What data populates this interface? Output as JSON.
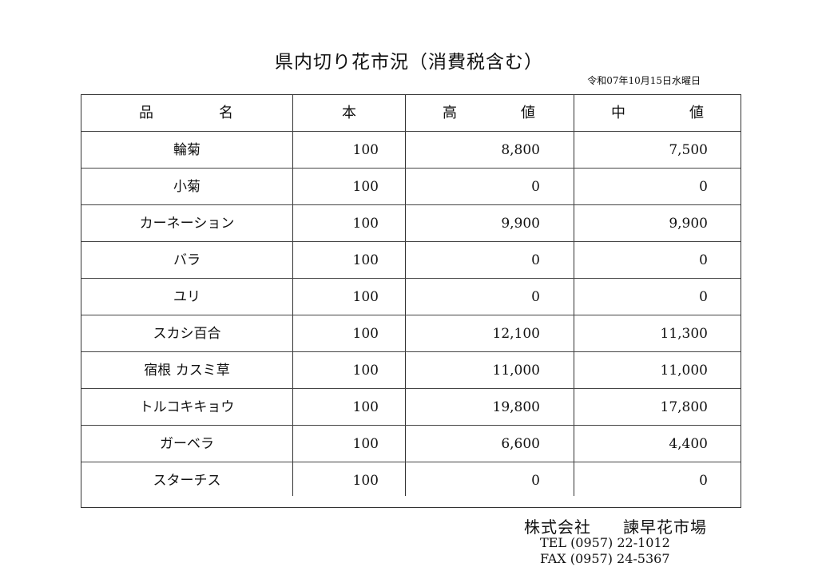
{
  "title": "県内切り花市況（消費税含む）",
  "date": "令和07年10月15日水曜日",
  "table": {
    "headers": {
      "name_a": "品",
      "name_b": "名",
      "count": "本",
      "high_a": "高",
      "high_b": "値",
      "mid_a": "中",
      "mid_b": "値"
    },
    "rows": [
      {
        "name": "輪菊",
        "count": "100",
        "high": "8,800",
        "mid": "7,500"
      },
      {
        "name": "小菊",
        "count": "100",
        "high": "0",
        "mid": "0"
      },
      {
        "name": "カーネーション",
        "count": "100",
        "high": "9,900",
        "mid": "9,900"
      },
      {
        "name": "バラ",
        "count": "100",
        "high": "0",
        "mid": "0"
      },
      {
        "name": "ユリ",
        "count": "100",
        "high": "0",
        "mid": "0"
      },
      {
        "name": "スカシ百合",
        "count": "100",
        "high": "12,100",
        "mid": "11,300"
      },
      {
        "name": "宿根 カスミ草",
        "count": "100",
        "high": "11,000",
        "mid": "11,000"
      },
      {
        "name": "トルコキキョウ",
        "count": "100",
        "high": "19,800",
        "mid": "17,800"
      },
      {
        "name": "ガーベラ",
        "count": "100",
        "high": "6,600",
        "mid": "4,400"
      },
      {
        "name": "スターチス",
        "count": "100",
        "high": "0",
        "mid": "0"
      }
    ]
  },
  "footer": {
    "company_type": "株式会社",
    "company_name": "諫早花市場",
    "tel": "TEL (0957) 22-1012",
    "fax": "FAX (0957) 24-5367"
  }
}
